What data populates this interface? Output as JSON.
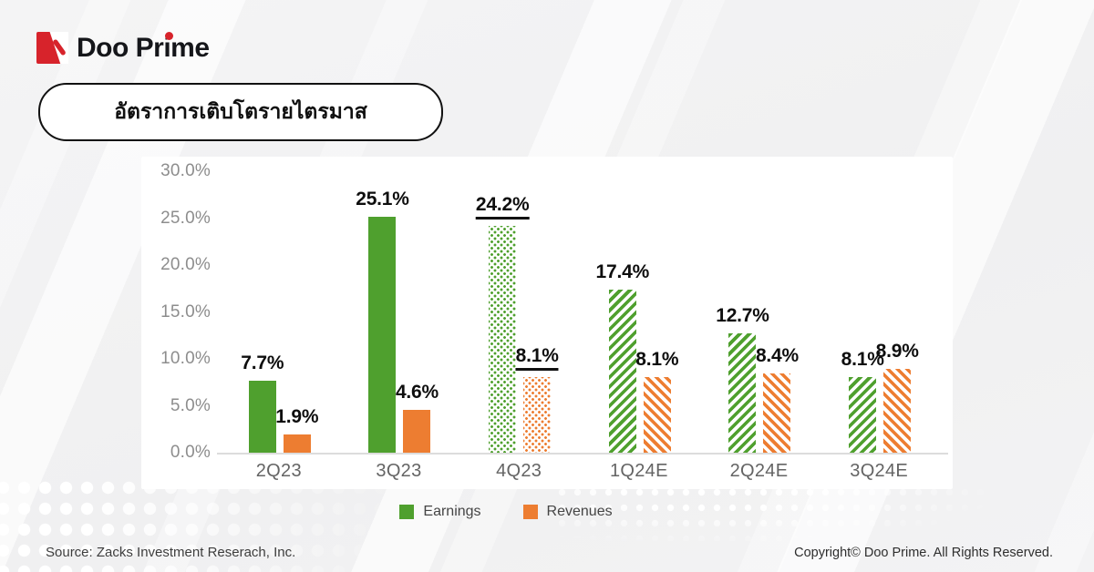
{
  "brand": {
    "name": "Doo Prime",
    "icon": "doo-prime-arrow-icon",
    "accent_red": "#d7232b",
    "text_color": "#15161a"
  },
  "title": {
    "text": "อัตราการเติบโตรายไตรมาส"
  },
  "chart_data": {
    "type": "bar",
    "title": "อัตราการเติบโตรายไตรมาส",
    "categories": [
      "2Q23",
      "3Q23",
      "4Q23",
      "1Q24E",
      "2Q24E",
      "3Q24E"
    ],
    "series": [
      {
        "name": "Earnings",
        "color": "#4fa02e",
        "values": [
          7.7,
          25.1,
          24.2,
          17.4,
          12.7,
          8.1
        ],
        "labels": [
          "7.7%",
          "25.1%",
          "24.2%",
          "17.4%",
          "12.7%",
          "8.1%"
        ],
        "styles": [
          "solid",
          "solid",
          "dotted",
          "striped",
          "striped",
          "striped"
        ]
      },
      {
        "name": "Revenues",
        "color": "#ed7d31",
        "values": [
          1.9,
          4.6,
          8.1,
          8.1,
          8.4,
          8.9
        ],
        "labels": [
          "1.9%",
          "4.6%",
          "8.1%",
          "8.1%",
          "8.4%",
          "8.9%"
        ],
        "styles": [
          "solid",
          "solid",
          "dotted",
          "striped",
          "striped",
          "striped"
        ]
      }
    ],
    "underline_categories": [
      "4Q23"
    ],
    "y_ticks": [
      "30.0%",
      "25.0%",
      "20.0%",
      "15.0%",
      "10.0%",
      "5.0%",
      "0.0%"
    ],
    "ylim": [
      0,
      30
    ],
    "xlabel": "",
    "ylabel": "",
    "grid": false,
    "legend_position": "bottom"
  },
  "legend": {
    "items": [
      {
        "label": "Earnings",
        "color": "#4fa02e"
      },
      {
        "label": "Revenues",
        "color": "#ed7d31"
      }
    ]
  },
  "footer": {
    "source": "Source: Zacks Investment Reserach, Inc.",
    "copyright": "Copyright© Doo Prime. All Rights Reserved."
  }
}
